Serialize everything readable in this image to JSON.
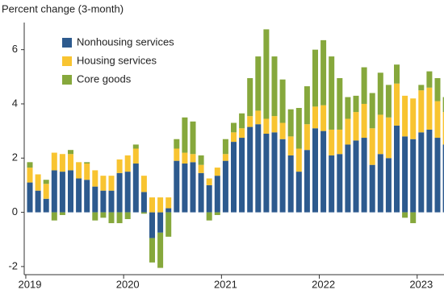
{
  "chart_data": {
    "type": "stacked_bar",
    "y_label": "Percent change (3-month)",
    "categories": [
      "2019",
      null,
      null,
      null,
      null,
      null,
      null,
      null,
      null,
      null,
      null,
      null,
      "2020",
      null,
      null,
      null,
      null,
      null,
      null,
      null,
      null,
      null,
      null,
      null,
      "2021",
      null,
      null,
      null,
      null,
      null,
      null,
      null,
      null,
      null,
      null,
      null,
      "2022",
      null,
      null,
      null,
      null,
      null,
      null,
      null,
      null,
      null,
      null,
      null,
      "2023",
      null,
      null,
      null
    ],
    "series": [
      {
        "name": "Nonhousing services",
        "color": "#2d5a8e",
        "values": [
          1.1,
          0.8,
          0.5,
          1.55,
          1.5,
          1.55,
          1.25,
          1.2,
          0.95,
          0.8,
          0.8,
          1.45,
          1.5,
          1.8,
          0.75,
          -0.95,
          -0.75,
          0.15,
          1.9,
          1.8,
          1.85,
          1.45,
          1.0,
          1.35,
          1.9,
          2.6,
          2.75,
          3.15,
          3.25,
          2.9,
          2.95,
          2.7,
          2.1,
          1.5,
          2.3,
          3.1,
          3.0,
          2.1,
          2.15,
          2.5,
          2.65,
          2.75,
          1.75,
          2.15,
          2.0,
          3.2,
          2.8,
          2.7,
          2.95,
          3.05,
          2.75,
          2.5
        ]
      },
      {
        "name": "Housing services",
        "color": "#f8c431",
        "values": [
          0.55,
          0.6,
          0.55,
          0.65,
          0.65,
          0.6,
          0.6,
          0.6,
          0.6,
          0.55,
          0.55,
          0.5,
          0.6,
          0.55,
          0.6,
          0.55,
          0.55,
          0.4,
          0.45,
          0.4,
          0.3,
          0.3,
          0.25,
          0.3,
          0.25,
          0.35,
          0.35,
          0.4,
          0.5,
          0.55,
          0.6,
          0.6,
          0.7,
          0.85,
          0.95,
          0.8,
          0.95,
          0.95,
          0.9,
          0.95,
          1.05,
          1.25,
          1.35,
          1.45,
          1.5,
          1.55,
          1.5,
          1.5,
          1.55,
          1.55,
          1.35,
          1.2
        ]
      },
      {
        "name": "Core goods",
        "color": "#86a83c",
        "values": [
          0.2,
          0.0,
          0.15,
          -0.3,
          -0.1,
          0.15,
          0.0,
          0.05,
          -0.3,
          -0.2,
          -0.4,
          -0.4,
          -0.25,
          0.15,
          -0.05,
          -0.9,
          -1.3,
          -0.9,
          0.35,
          1.3,
          1.2,
          0.35,
          -0.3,
          -0.1,
          0.55,
          0.35,
          0.55,
          1.4,
          2.0,
          3.3,
          2.2,
          1.6,
          1.0,
          1.5,
          1.4,
          2.1,
          2.4,
          2.7,
          1.9,
          0.8,
          0.6,
          1.35,
          1.3,
          1.55,
          1.2,
          0.7,
          -0.2,
          -0.4,
          0.2,
          0.6,
          0.85,
          0.55
        ]
      }
    ],
    "ylim": [
      -2.3,
      7
    ],
    "yticks": [
      -2,
      0,
      2,
      4,
      6
    ],
    "legend": "upper-left"
  }
}
